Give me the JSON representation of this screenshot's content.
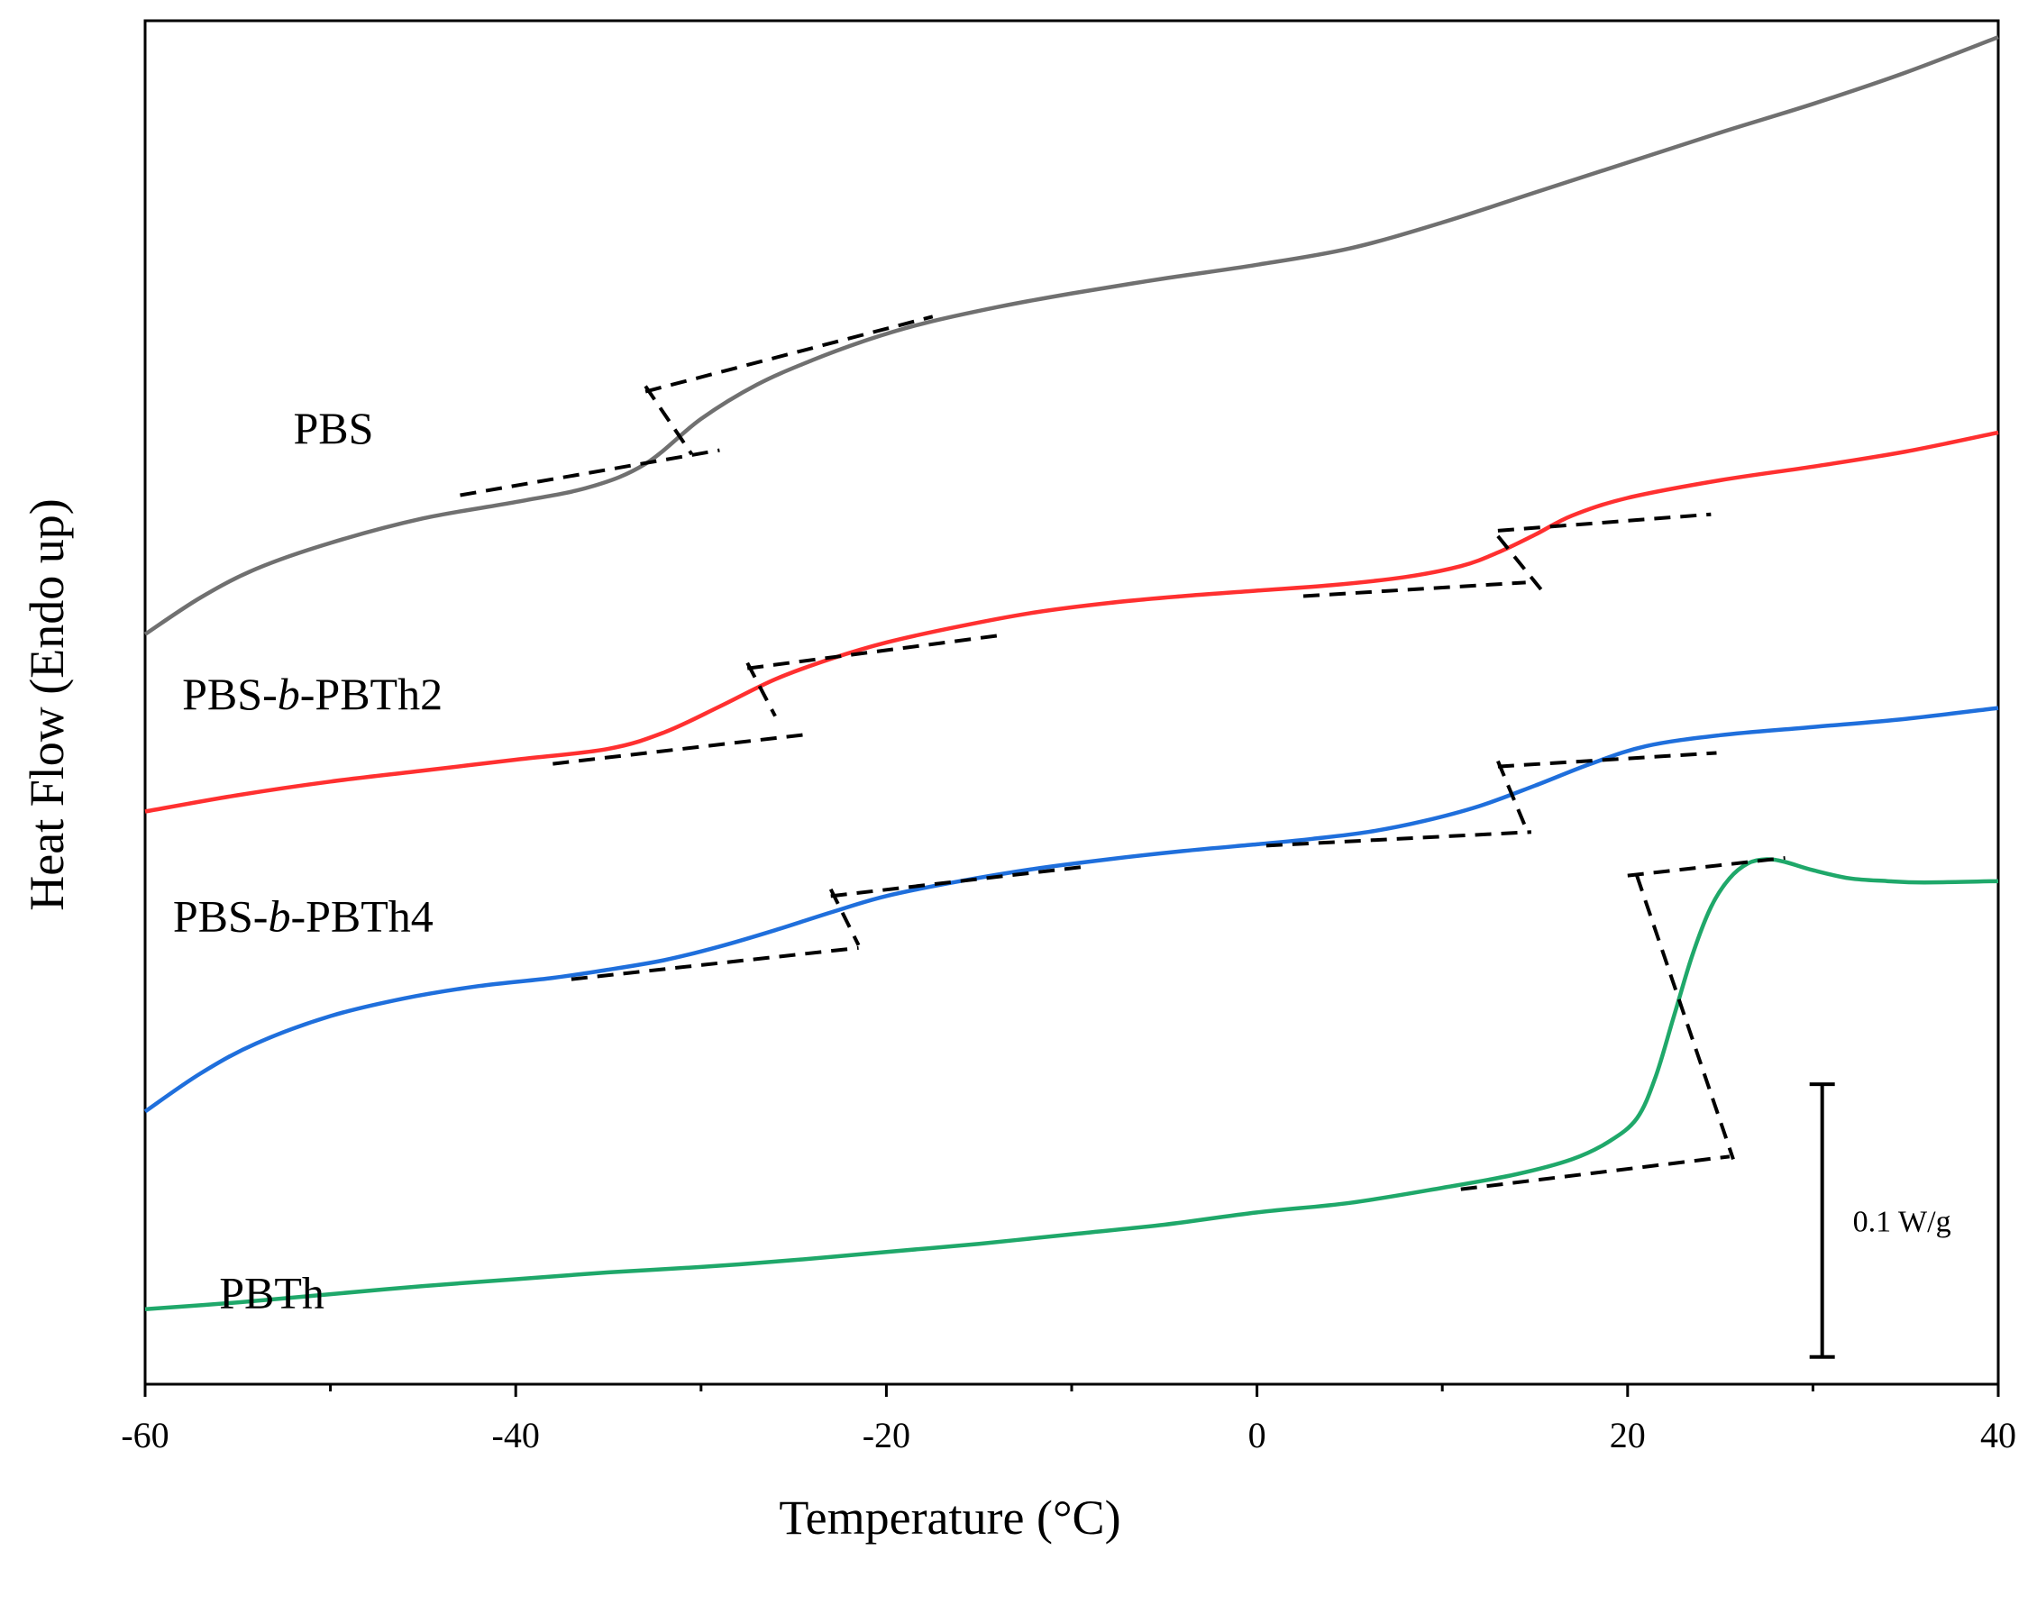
{
  "chart_data": {
    "type": "line",
    "title": "",
    "xlabel": "Temperature (°C)",
    "ylabel": "Heat Flow (Endo up)",
    "xlim": [
      -60,
      40
    ],
    "ylim": [
      0,
      100
    ],
    "xticks": [
      -60,
      -40,
      -20,
      0,
      20,
      40
    ],
    "xtick_labels": [
      "-60",
      "-40",
      "-20",
      "0",
      "20",
      "40"
    ],
    "ytick_labels": [],
    "grid": false,
    "legend": "none",
    "scale_bar": {
      "label": "0.1 W/g",
      "x": 30.5,
      "y_from": 2,
      "y_to": 22
    },
    "series": [
      {
        "name": "PBS",
        "label": "PBS",
        "color": "#707070",
        "label_pos": {
          "x": -52,
          "y": 69
        },
        "points": [
          [
            -60,
            55
          ],
          [
            -57,
            57.7
          ],
          [
            -54,
            59.8
          ],
          [
            -50,
            61.7
          ],
          [
            -45,
            63.5
          ],
          [
            -40,
            64.7
          ],
          [
            -36,
            65.8
          ],
          [
            -33,
            67.5
          ],
          [
            -30,
            70.8
          ],
          [
            -27,
            73.3
          ],
          [
            -24,
            75.1
          ],
          [
            -21,
            76.6
          ],
          [
            -18,
            77.8
          ],
          [
            -14,
            79
          ],
          [
            -10,
            80
          ],
          [
            -5,
            81.1
          ],
          [
            0,
            82.1
          ],
          [
            5,
            83.3
          ],
          [
            10,
            85.2
          ],
          [
            15,
            87.4
          ],
          [
            20,
            89.6
          ],
          [
            25,
            91.8
          ],
          [
            30,
            93.9
          ],
          [
            35,
            96.2
          ],
          [
            40,
            98.8
          ]
        ],
        "tangents": [
          [
            [
              -43,
              65.2
            ],
            [
              -29,
              68.5
            ]
          ],
          [
            [
              -33,
              72.8
            ],
            [
              -17.5,
              78.3
            ]
          ],
          [
            [
              -33,
              73.2
            ],
            [
              -30.5,
              68.2
            ]
          ]
        ]
      },
      {
        "name": "PBS-b-PBTh2",
        "label": "PBS-b-PBTh2",
        "color": "#ff3030",
        "label_pos": {
          "x": -58,
          "y": 49.5
        },
        "points": [
          [
            -60,
            42
          ],
          [
            -55,
            43.2
          ],
          [
            -50,
            44.2
          ],
          [
            -45,
            45
          ],
          [
            -40,
            45.8
          ],
          [
            -35,
            46.6
          ],
          [
            -32,
            47.8
          ],
          [
            -29,
            49.7
          ],
          [
            -26,
            51.7
          ],
          [
            -23,
            53.2
          ],
          [
            -20,
            54.4
          ],
          [
            -16,
            55.6
          ],
          [
            -12,
            56.6
          ],
          [
            -8,
            57.3
          ],
          [
            -4,
            57.8
          ],
          [
            0,
            58.2
          ],
          [
            4,
            58.6
          ],
          [
            8,
            59.2
          ],
          [
            11,
            60
          ],
          [
            13,
            61
          ],
          [
            15,
            62.3
          ],
          [
            17,
            63.7
          ],
          [
            20,
            65
          ],
          [
            25,
            66.3
          ],
          [
            30,
            67.3
          ],
          [
            35,
            68.4
          ],
          [
            40,
            69.8
          ]
        ],
        "tangents": [
          [
            [
              -38,
              45.5
            ],
            [
              -24,
              47.7
            ]
          ],
          [
            [
              -27.5,
              52.5
            ],
            [
              -14,
              54.9
            ]
          ],
          [
            [
              -27.5,
              52.9
            ],
            [
              -26,
              49
            ]
          ],
          [
            [
              2.5,
              57.8
            ],
            [
              14.5,
              58.8
            ]
          ],
          [
            [
              13,
              62.6
            ],
            [
              24.5,
              63.8
            ]
          ],
          [
            [
              13,
              62.2
            ],
            [
              15.5,
              58
            ]
          ]
        ]
      },
      {
        "name": "PBS-b-PBTh4",
        "label": "PBS-b-PBTh4",
        "color": "#1f6fdc",
        "label_pos": {
          "x": -58.5,
          "y": 33.2
        },
        "points": [
          [
            -60,
            20
          ],
          [
            -57,
            22.8
          ],
          [
            -54,
            25
          ],
          [
            -50,
            27
          ],
          [
            -46,
            28.3
          ],
          [
            -42,
            29.2
          ],
          [
            -38,
            29.8
          ],
          [
            -35,
            30.4
          ],
          [
            -32,
            31.1
          ],
          [
            -29,
            32.1
          ],
          [
            -26,
            33.3
          ],
          [
            -23,
            34.6
          ],
          [
            -20,
            35.8
          ],
          [
            -16,
            36.9
          ],
          [
            -12,
            37.8
          ],
          [
            -8,
            38.5
          ],
          [
            -4,
            39.1
          ],
          [
            0,
            39.6
          ],
          [
            3,
            40
          ],
          [
            6,
            40.5
          ],
          [
            9,
            41.3
          ],
          [
            12,
            42.4
          ],
          [
            15,
            43.9
          ],
          [
            18,
            45.5
          ],
          [
            21,
            46.8
          ],
          [
            25,
            47.6
          ],
          [
            30,
            48.2
          ],
          [
            35,
            48.8
          ],
          [
            40,
            49.6
          ]
        ],
        "tangents": [
          [
            [
              -37,
              29.7
            ],
            [
              -21.5,
              32
            ]
          ],
          [
            [
              -23,
              35.8
            ],
            [
              -9,
              38
            ]
          ],
          [
            [
              -23,
              36.3
            ],
            [
              -21.5,
              32.2
            ]
          ],
          [
            [
              0.5,
              39.5
            ],
            [
              14.8,
              40.5
            ]
          ],
          [
            [
              13,
              45.3
            ],
            [
              24.8,
              46.3
            ]
          ],
          [
            [
              13,
              45.7
            ],
            [
              14.6,
              40.5
            ]
          ]
        ]
      },
      {
        "name": "PBTh",
        "label": "PBTh",
        "color": "#1fa86a",
        "label_pos": {
          "x": -56,
          "y": 5.6
        },
        "points": [
          [
            -60,
            5.5
          ],
          [
            -55,
            6
          ],
          [
            -50,
            6.6
          ],
          [
            -45,
            7.2
          ],
          [
            -40,
            7.7
          ],
          [
            -35,
            8.2
          ],
          [
            -30,
            8.6
          ],
          [
            -25,
            9.1
          ],
          [
            -20,
            9.7
          ],
          [
            -15,
            10.3
          ],
          [
            -10,
            11
          ],
          [
            -5,
            11.7
          ],
          [
            0,
            12.6
          ],
          [
            5,
            13.3
          ],
          [
            10,
            14.4
          ],
          [
            14,
            15.4
          ],
          [
            17,
            16.5
          ],
          [
            19,
            17.8
          ],
          [
            20.5,
            19.5
          ],
          [
            21.5,
            22.5
          ],
          [
            22.5,
            27
          ],
          [
            23.5,
            31.5
          ],
          [
            24.5,
            35
          ],
          [
            25.5,
            37.1
          ],
          [
            26.5,
            38.2
          ],
          [
            27.5,
            38.5
          ],
          [
            28.5,
            38.3
          ],
          [
            30,
            37.7
          ],
          [
            32,
            37.1
          ],
          [
            34,
            36.9
          ],
          [
            36,
            36.8
          ],
          [
            40,
            36.9
          ]
        ],
        "tangents": [
          [
            [
              11,
              14.3
            ],
            [
              25.5,
              16.7
            ]
          ],
          [
            [
              20,
              37.3
            ],
            [
              28.5,
              38.6
            ]
          ],
          [
            [
              20.5,
              37.3
            ],
            [
              25.7,
              16.5
            ]
          ]
        ]
      }
    ]
  }
}
